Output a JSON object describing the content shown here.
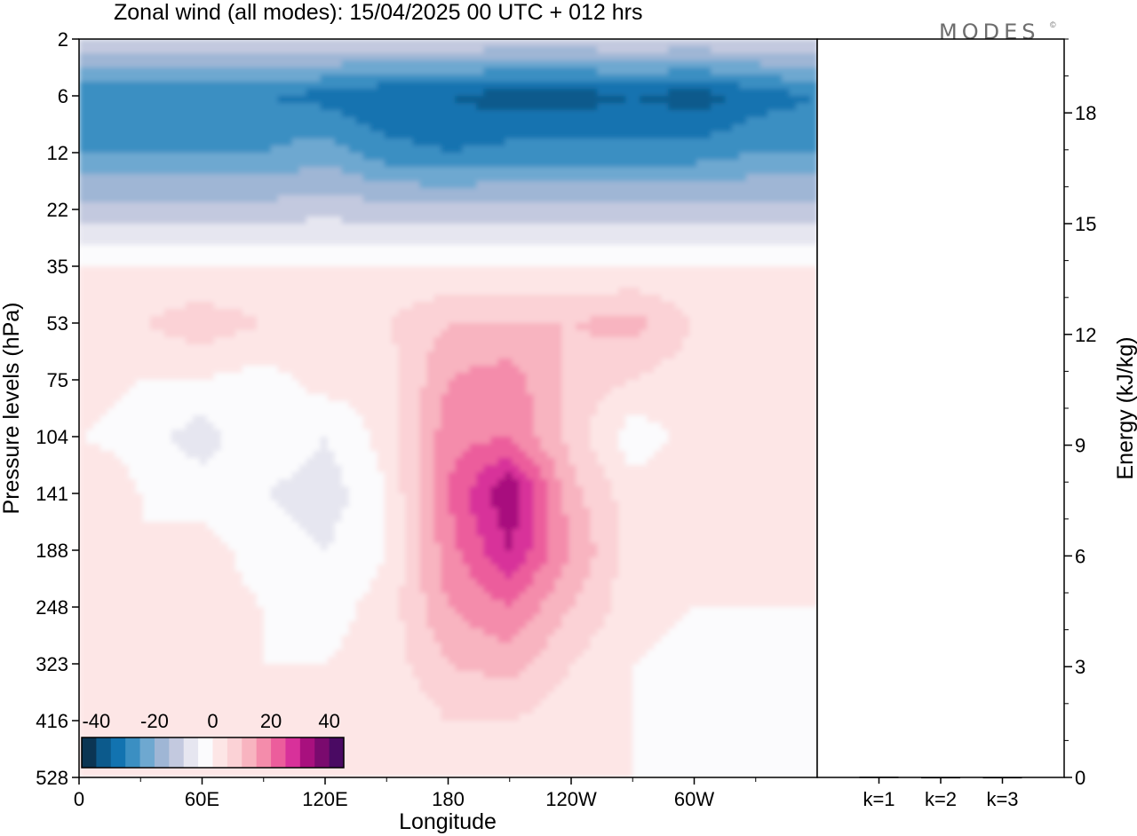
{
  "header": {
    "title": "Zonal wind (all modes):  15/04/2025  00 UTC  + 012 hrs",
    "brand": "MODES",
    "brand_mark": "©"
  },
  "colors": {
    "background": "#ffffff",
    "axis": "#000000",
    "palette": [
      "#0b3553",
      "#0c5a8c",
      "#1273b0",
      "#3b8fc2",
      "#6ea8d0",
      "#9fb6d5",
      "#c3c9df",
      "#e6e6f0",
      "#fbfbfd",
      "#fde6e6",
      "#fbd2d6",
      "#f8b4c0",
      "#f48cab",
      "#ec5d9c",
      "#d8319a",
      "#a8107e",
      "#7a0a6e",
      "#4a0a63"
    ]
  },
  "chart_data": [
    {
      "type": "heatmap",
      "title": "Zonal wind (all modes):  15/04/2025  00 UTC  + 012 hrs",
      "xlabel": "Longitude",
      "ylabel": "Pressure levels (hPa)",
      "x_ticks": [
        "0",
        "60E",
        "120E",
        "180",
        "120W",
        "60W"
      ],
      "x_tick_degrees": [
        0,
        60,
        120,
        180,
        240,
        300
      ],
      "xlim": [
        0,
        360
      ],
      "y_ticks": [
        "2",
        "6",
        "12",
        "22",
        "35",
        "53",
        "75",
        "104",
        "141",
        "188",
        "248",
        "323",
        "416",
        "528"
      ],
      "y_inverted": true,
      "colorbar": {
        "labels": [
          "-40",
          "-20",
          "0",
          "20",
          "40"
        ],
        "min": -45,
        "max": 45,
        "step": 5,
        "location": "bottom-left"
      },
      "levels_hPa": [
        2,
        6,
        12,
        22,
        35,
        53,
        75,
        104,
        141,
        188,
        248,
        323,
        416,
        528
      ],
      "longitudes_deg": [
        0,
        30,
        60,
        90,
        120,
        150,
        180,
        210,
        240,
        270,
        300,
        330
      ],
      "values": [
        [
          -10,
          -10,
          -10,
          -10,
          -10,
          -10,
          -10,
          -10,
          -10,
          -10,
          -10,
          -10
        ],
        [
          -30,
          -30,
          -30,
          -30,
          -32,
          -35,
          -35,
          -38,
          -38,
          -35,
          -38,
          -33
        ],
        [
          -25,
          -25,
          -25,
          -25,
          -22,
          -28,
          -30,
          -28,
          -28,
          -28,
          -28,
          -25
        ],
        [
          -13,
          -13,
          -13,
          -13,
          -12,
          -13,
          -13,
          -13,
          -13,
          -13,
          -13,
          -13
        ],
        [
          0,
          0,
          0,
          0,
          0,
          0,
          0,
          0,
          0,
          0,
          0,
          0
        ],
        [
          5,
          5,
          8,
          5,
          5,
          5,
          10,
          10,
          10,
          12,
          5,
          5
        ],
        [
          2,
          0,
          0,
          -2,
          2,
          2,
          15,
          18,
          8,
          5,
          2,
          2
        ],
        [
          0,
          -2,
          -8,
          0,
          -5,
          2,
          18,
          20,
          8,
          -3,
          2,
          2
        ],
        [
          5,
          0,
          -2,
          -5,
          -8,
          0,
          20,
          35,
          12,
          2,
          5,
          0
        ],
        [
          5,
          0,
          2,
          -2,
          -5,
          0,
          18,
          30,
          15,
          2,
          3,
          0
        ],
        [
          0,
          0,
          2,
          0,
          -2,
          2,
          15,
          20,
          10,
          2,
          0,
          0
        ],
        [
          0,
          0,
          0,
          0,
          0,
          2,
          10,
          12,
          5,
          0,
          -2,
          -2
        ],
        [
          0,
          0,
          0,
          2,
          0,
          0,
          5,
          5,
          2,
          0,
          -2,
          -2
        ],
        [
          0,
          0,
          0,
          0,
          0,
          0,
          2,
          2,
          0,
          0,
          -2,
          -2
        ]
      ]
    },
    {
      "type": "bar",
      "ylabel": "Energy (kJ/kg)",
      "categories": [
        "k=1",
        "k=2",
        "k=3"
      ],
      "values": [
        0.02,
        0.01,
        0.01
      ],
      "ylim": [
        0,
        20
      ],
      "y_ticks": [
        "0",
        "3",
        "6",
        "9",
        "12",
        "15",
        "18"
      ]
    }
  ]
}
